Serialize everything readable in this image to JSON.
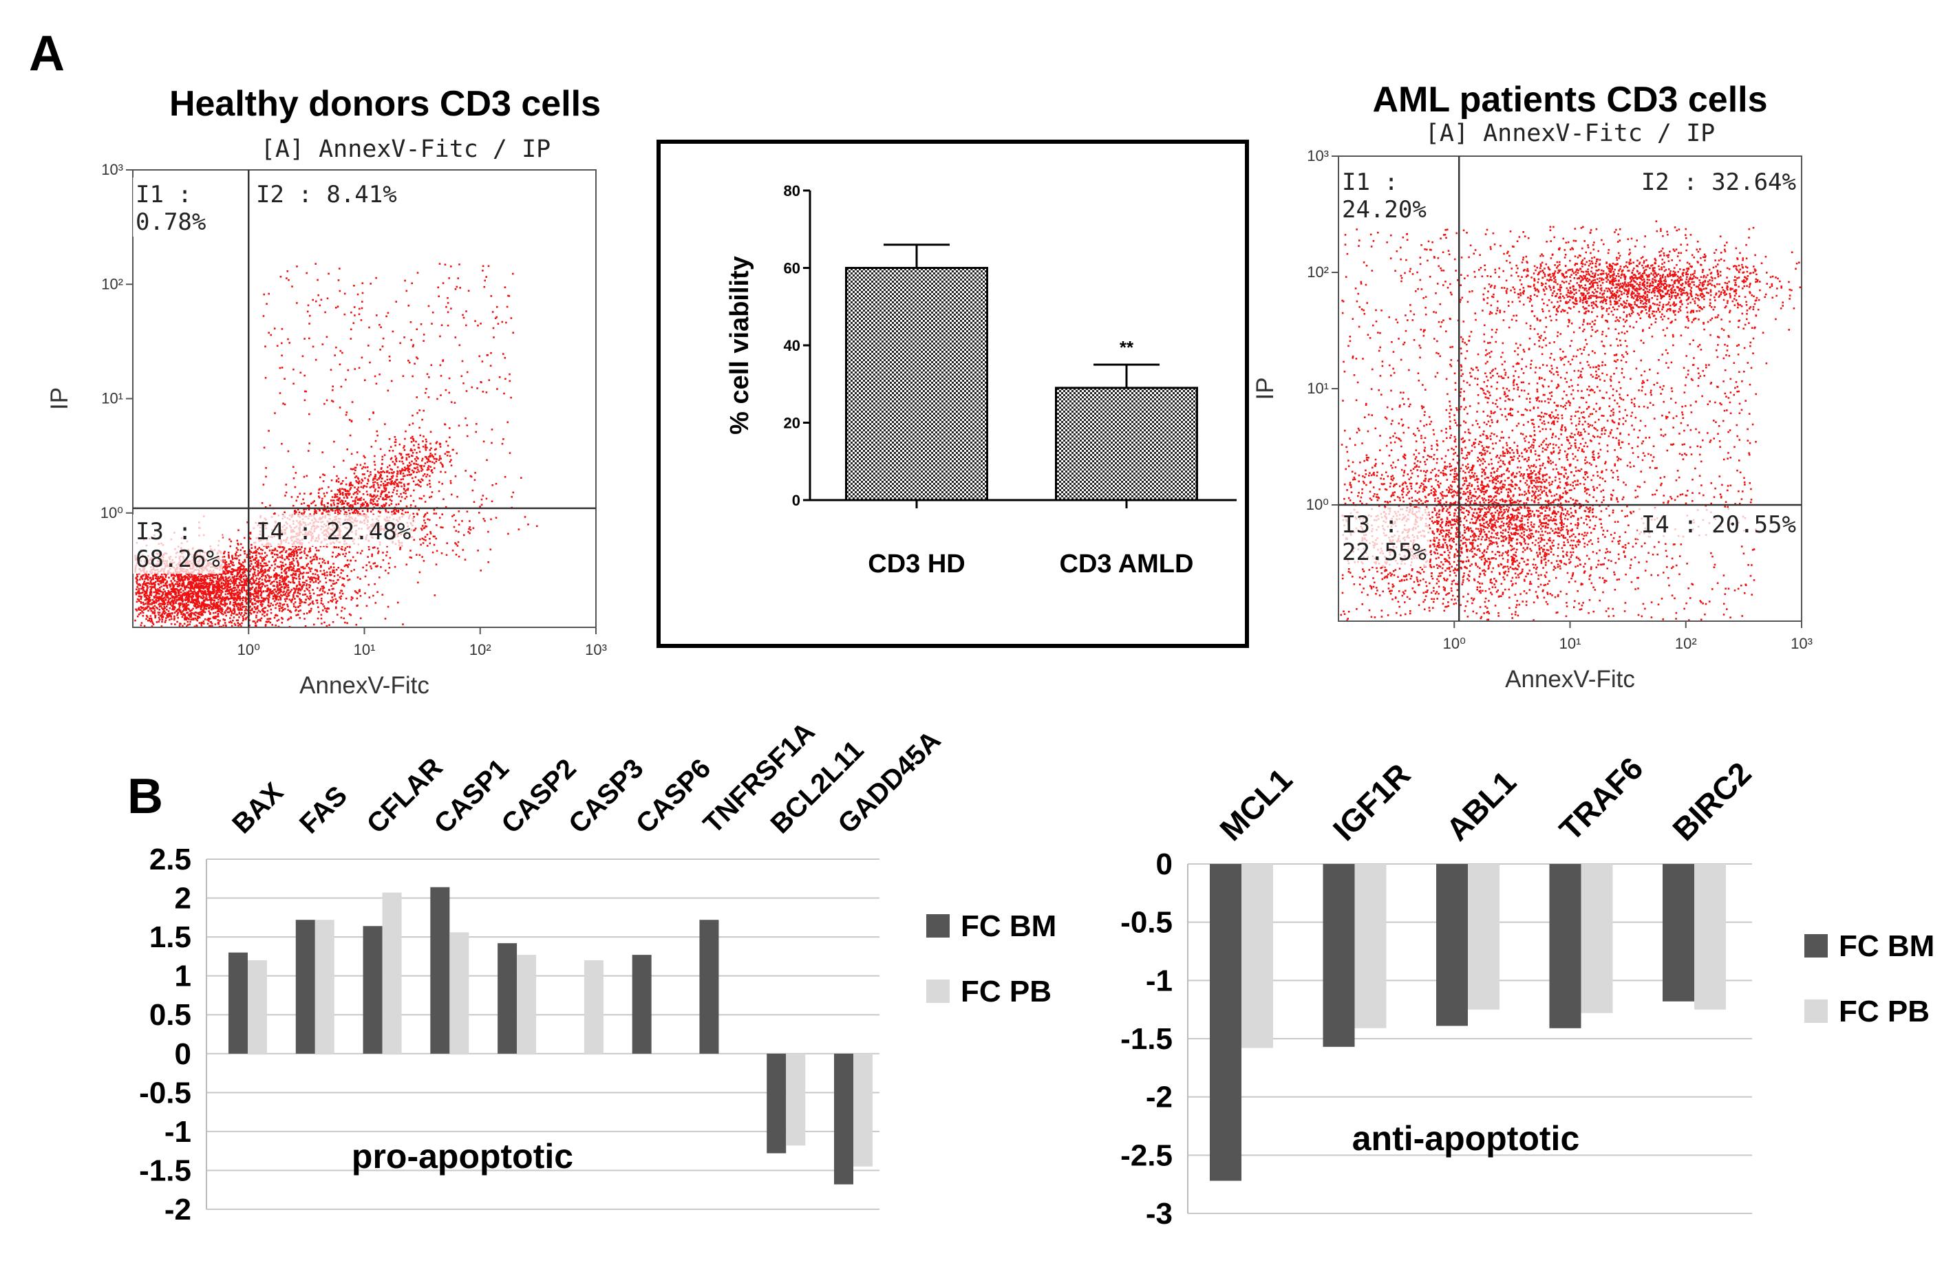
{
  "panel_labels": {
    "a": "A",
    "b": "B"
  },
  "colors": {
    "dots": "#ee1111",
    "bm": "#555555",
    "pb": "#d9d9d9",
    "grid": "#c8c8c8"
  },
  "chart_data": [
    {
      "type": "scatter",
      "title": "Healthy donors CD3 cells",
      "subtitle": "[A] AnnexV-Fitc / IP",
      "xlabel": "AnnexV-Fitc",
      "ylabel": "IP",
      "x_scale": "log",
      "y_scale": "log",
      "xlim": [
        0.1,
        1000
      ],
      "ylim": [
        0.1,
        1000
      ],
      "xticks": [
        "10⁰",
        "10¹",
        "10²",
        "10³"
      ],
      "yticks": [
        "10⁰",
        "10¹",
        "10²",
        "10³"
      ],
      "gate": {
        "x": 1.0,
        "y": 1.1
      },
      "quadrants": [
        {
          "id": "I1",
          "label": "I1 :",
          "value": "0.78%"
        },
        {
          "id": "I2",
          "label": "I2 : 8.41%"
        },
        {
          "id": "I3",
          "label": "I3 :",
          "value": "68.26%"
        },
        {
          "id": "I4",
          "label": "I4 : 22.48%"
        }
      ]
    },
    {
      "type": "bar",
      "title": "",
      "categories": [
        "CD3 HD",
        "CD3 AMLD"
      ],
      "values": [
        60,
        29
      ],
      "errors": [
        6,
        6
      ],
      "significance": [
        "",
        "**"
      ],
      "ylabel": "% cell viability",
      "ylim": [
        0,
        80
      ],
      "yticks": [
        0,
        20,
        40,
        60,
        80
      ]
    },
    {
      "type": "scatter",
      "title": "AML patients CD3 cells",
      "subtitle": "[A] AnnexV-Fitc / IP",
      "xlabel": "AnnexV-Fitc",
      "ylabel": "IP",
      "x_scale": "log",
      "y_scale": "log",
      "xlim": [
        0.1,
        1000
      ],
      "ylim": [
        0.1,
        1000
      ],
      "xticks": [
        "10⁰",
        "10¹",
        "10²",
        "10³"
      ],
      "yticks": [
        "10⁰",
        "10¹",
        "10²",
        "10³"
      ],
      "gate": {
        "x": 1.1,
        "y": 1.0
      },
      "quadrants": [
        {
          "id": "I1",
          "label": "I1 :",
          "value": "24.20%"
        },
        {
          "id": "I2",
          "label": "I2 : 32.64%"
        },
        {
          "id": "I3",
          "label": "I3 :",
          "value": "22.55%"
        },
        {
          "id": "I4",
          "label": "I4 : 20.55%"
        }
      ]
    },
    {
      "type": "bar",
      "title": "pro-apoptotic",
      "categories": [
        "BAX",
        "FAS",
        "CFLAR",
        "CASP1",
        "CASP2",
        "CASP3",
        "CASP6",
        "TNFRSF1A",
        "BCL2L11",
        "GADD45A"
      ],
      "series": [
        {
          "name": "FC BM",
          "values": [
            1.3,
            1.72,
            1.64,
            2.14,
            1.42,
            null,
            1.27,
            1.72,
            -1.28,
            -1.68
          ]
        },
        {
          "name": "FC PB",
          "values": [
            1.2,
            1.72,
            2.07,
            1.56,
            1.27,
            1.2,
            null,
            null,
            -1.18,
            -1.45
          ]
        }
      ],
      "ylim": [
        -2,
        2.5
      ],
      "yticks": [
        "2.5",
        "2",
        "1.5",
        "1",
        "0.5",
        "0",
        "-0.5",
        "-1",
        "-1.5",
        "-2"
      ]
    },
    {
      "type": "bar",
      "title": "anti-apoptotic",
      "categories": [
        "MCL1",
        "IGF1R",
        "ABL1",
        "TRAF6",
        "BIRC2"
      ],
      "series": [
        {
          "name": "FC BM",
          "values": [
            -2.72,
            -1.57,
            -1.39,
            -1.41,
            -1.18
          ]
        },
        {
          "name": "FC PB",
          "values": [
            -1.58,
            -1.41,
            -1.25,
            -1.28,
            -1.25
          ]
        }
      ],
      "ylim": [
        -3,
        0
      ],
      "yticks": [
        "0",
        "-0.5",
        "-1",
        "-1.5",
        "-2",
        "-2.5",
        "-3"
      ]
    }
  ]
}
